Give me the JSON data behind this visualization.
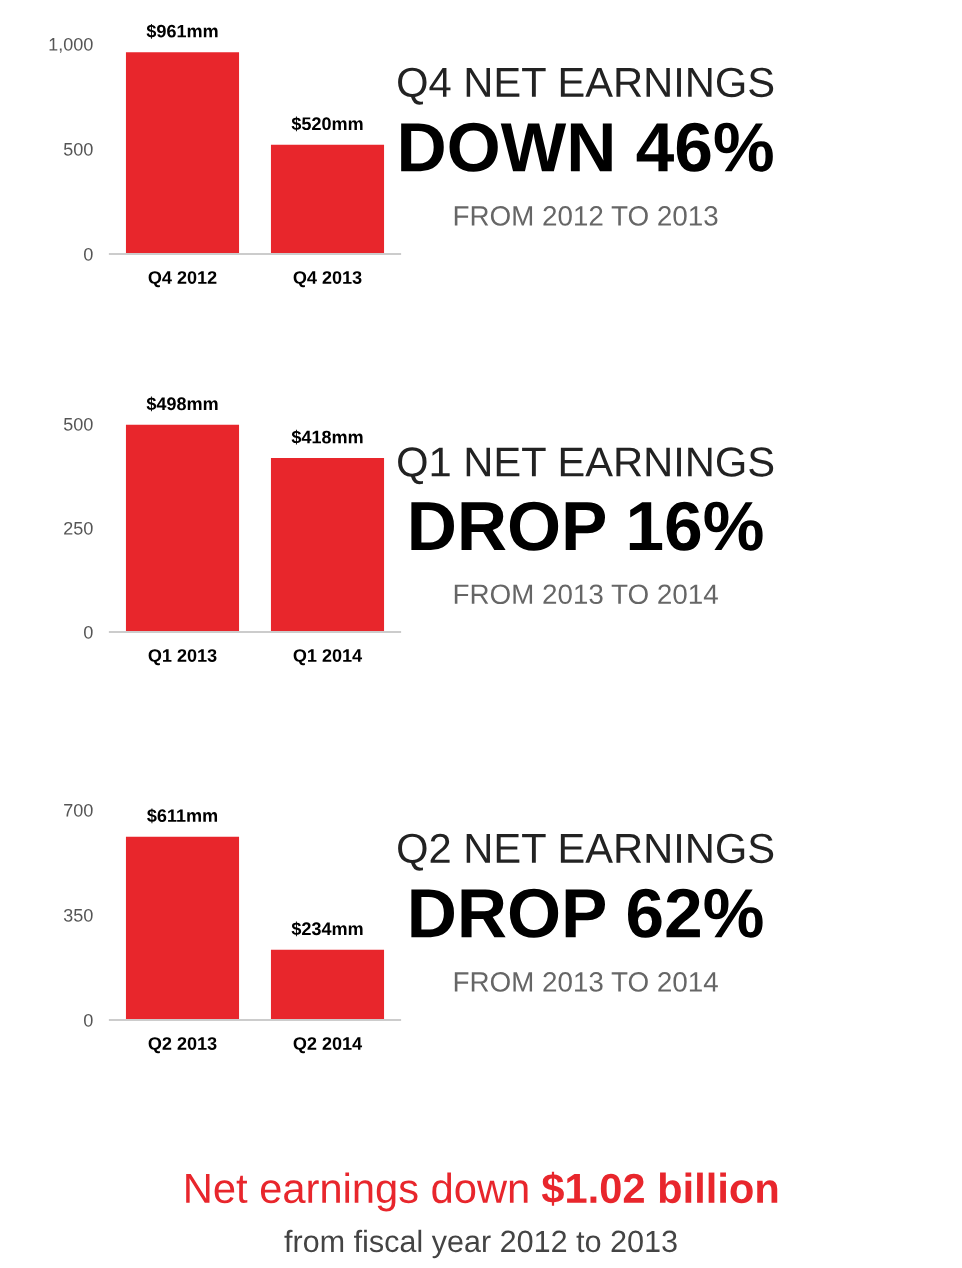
{
  "chart_data": [
    {
      "type": "bar",
      "categories": [
        "Q4 2012",
        "Q4 2013"
      ],
      "values": [
        961,
        520
      ],
      "value_labels": [
        "$961mm",
        "$520mm"
      ],
      "color": "#e8262c",
      "ylim": [
        0,
        1000
      ],
      "yticks": [
        0,
        500,
        {
          "value": 1000,
          "label": "1,000"
        }
      ],
      "grid": false,
      "legend": false,
      "annotations": [
        "Q4 NET EARNINGS",
        "DOWN 46%",
        "FROM 2012 TO 2013"
      ]
    },
    {
      "type": "bar",
      "categories": [
        "Q1 2013",
        "Q1 2014"
      ],
      "values": [
        498,
        418
      ],
      "value_labels": [
        "$498mm",
        "$418mm"
      ],
      "color": "#e8262c",
      "ylim": [
        0,
        500
      ],
      "yticks": [
        0,
        250,
        500
      ],
      "grid": false,
      "legend": false,
      "annotations": [
        "Q1 NET EARNINGS",
        "DROP 16%",
        "FROM 2013 TO 2014"
      ]
    },
    {
      "type": "bar",
      "categories": [
        "Q2 2013",
        "Q2 2014"
      ],
      "values": [
        611,
        234
      ],
      "value_labels": [
        "$611mm",
        "$234mm"
      ],
      "color": "#e8262c",
      "ylim": [
        0,
        700
      ],
      "yticks": [
        0,
        350,
        700
      ],
      "grid": false,
      "legend": false,
      "annotations": [
        "Q2 NET EARNINGS",
        "DROP 62%",
        "FROM 2013 TO 2014",
        "Net earnings down",
        "$1.02 billion",
        "from fiscal year 2012 to 2013"
      ]
    }
  ]
}
